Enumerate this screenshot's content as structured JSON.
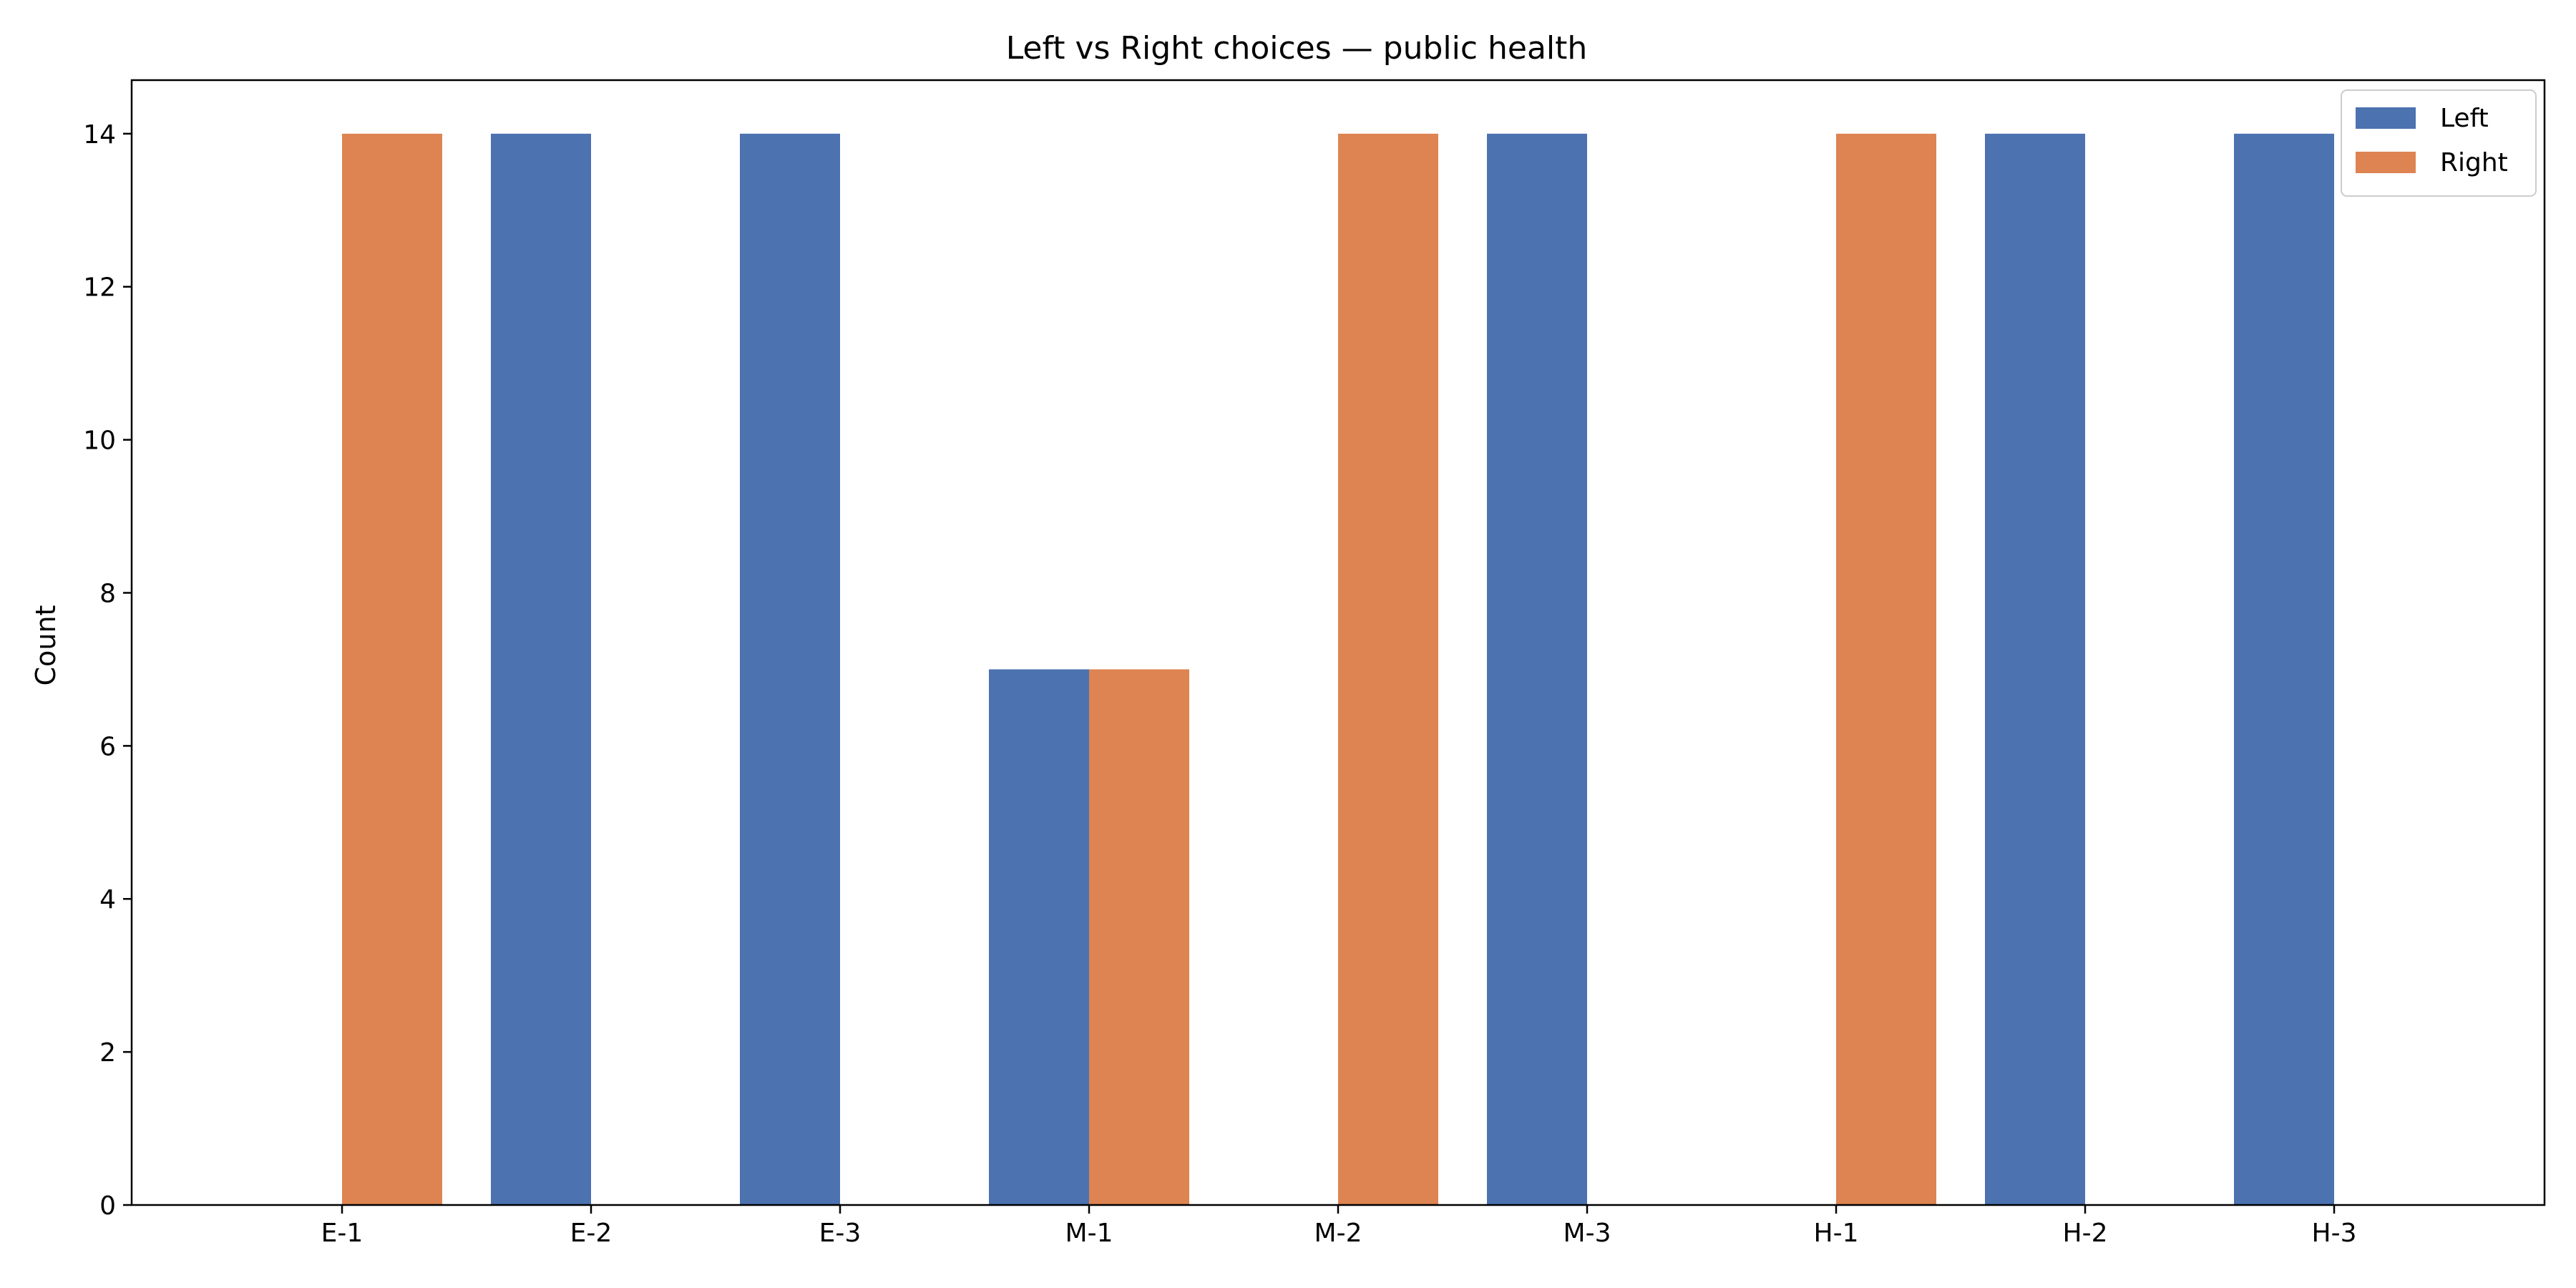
{
  "chart_data": {
    "type": "bar",
    "title": "Left vs Right choices — public health",
    "xlabel": "",
    "ylabel": "Count",
    "categories": [
      "E-1",
      "E-2",
      "E-3",
      "M-1",
      "M-2",
      "M-3",
      "H-1",
      "H-2",
      "H-3"
    ],
    "series": [
      {
        "name": "Left",
        "color": "#4c72b0",
        "values": [
          0,
          14,
          14,
          7,
          0,
          14,
          0,
          14,
          14
        ]
      },
      {
        "name": "Right",
        "color": "#dd8452",
        "values": [
          14,
          0,
          0,
          7,
          14,
          0,
          14,
          0,
          0
        ]
      }
    ],
    "ylim": [
      0,
      14.7
    ],
    "yticks": [
      0,
      2,
      4,
      6,
      8,
      10,
      12,
      14
    ],
    "grid": false,
    "legend_position": "top-right"
  }
}
